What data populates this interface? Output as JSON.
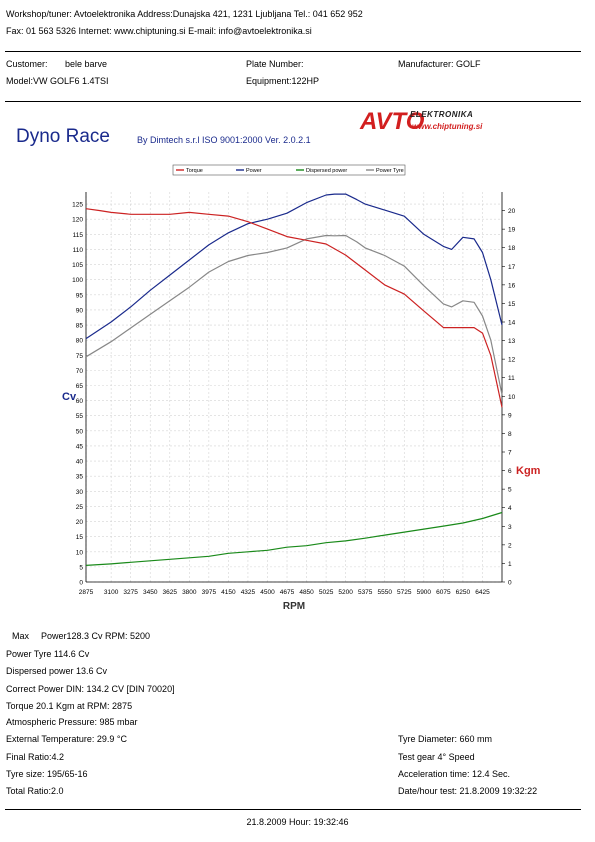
{
  "header": {
    "line1": "Workshop/tuner: Avtoelektronika   Address:Dunajska 421, 1231 Ljubljana   Tel.: 041 652 952",
    "line2": "Fax: 01 563 5326   Internet: www.chiptuning.si   E-mail: info@avtoelektronika.si"
  },
  "vehicle": {
    "customer_label": "Customer:",
    "customer_value": "bele barve",
    "plate": "Plate Number:",
    "manufacturer": "Manufacturer: GOLF",
    "model": "Model:VW GOLF6 1.4TSI",
    "equipment": "Equipment:122HP"
  },
  "report": {
    "title": "Dyno Race",
    "subtitle": "By Dimtech s.r.l  ISO 9001:2000  Ver. 2.0.2.1",
    "logo_main": "AVTO",
    "logo_side": "ELEKTRONIKA",
    "logo_url": "www.chiptuning.si"
  },
  "chart_data": {
    "type": "line",
    "xlabel": "RPM",
    "ylabel_left": "Cv",
    "ylabel_right": "Kgm",
    "xlim": [
      2875,
      6600
    ],
    "x_ticks": [
      "2875",
      "3100",
      "3275",
      "3450",
      "3625",
      "3800",
      "3975",
      "4150",
      "4325",
      "4500",
      "4675",
      "4850",
      "5025",
      "5200",
      "5375",
      "5550",
      "5725",
      "5900",
      "6075",
      "6250",
      "6425"
    ],
    "ylim_left": [
      0,
      129
    ],
    "y_ticks_left": [
      "0",
      "5",
      "10",
      "15",
      "20",
      "25",
      "30",
      "35",
      "40",
      "45",
      "50",
      "55",
      "60",
      "65",
      "70",
      "75",
      "80",
      "85",
      "90",
      "95",
      "100",
      "105",
      "110",
      "115",
      "120",
      "125"
    ],
    "ylim_right": [
      0,
      21
    ],
    "y_ticks_right": [
      "0",
      "1",
      "2",
      "3",
      "4",
      "5",
      "6",
      "7",
      "8",
      "9",
      "10",
      "11",
      "12",
      "13",
      "14",
      "15",
      "16",
      "17",
      "18",
      "19",
      "20"
    ],
    "legend": [
      "Torque",
      "Power",
      "Dispersed power",
      "Power Tyre"
    ],
    "colors": {
      "Torque": "#cc2222",
      "Power": "#1a2a8c",
      "Dispersed power": "#1a8a1a",
      "Power Tyre": "#888888"
    },
    "series": [
      {
        "name": "Power",
        "axis": "left",
        "x": [
          2875,
          3100,
          3275,
          3450,
          3625,
          3800,
          3975,
          4150,
          4325,
          4500,
          4675,
          4850,
          5025,
          5100,
          5200,
          5300,
          5375,
          5550,
          5725,
          5900,
          6075,
          6150,
          6250,
          6350,
          6425,
          6500,
          6600
        ],
        "values": [
          80.5,
          86,
          91,
          96.5,
          101.5,
          106.5,
          111.5,
          115.5,
          118.5,
          120,
          122,
          125.5,
          128,
          128.3,
          128.3,
          126.5,
          125,
          123,
          121,
          115,
          111,
          110,
          114,
          113.5,
          109,
          100,
          85
        ]
      },
      {
        "name": "Power Tyre",
        "axis": "left",
        "x": [
          2875,
          3100,
          3275,
          3450,
          3625,
          3800,
          3975,
          4150,
          4325,
          4500,
          4675,
          4850,
          5025,
          5100,
          5200,
          5300,
          5375,
          5550,
          5725,
          5900,
          6075,
          6150,
          6250,
          6350,
          6425,
          6500,
          6600
        ],
        "values": [
          74.5,
          79.5,
          84,
          88.5,
          93,
          97.5,
          102.5,
          106,
          108,
          109,
          110.5,
          113.5,
          114.6,
          114.5,
          114.6,
          112.5,
          110.5,
          108,
          104.5,
          98,
          92,
          91,
          93,
          92.5,
          88,
          80,
          62
        ]
      },
      {
        "name": "Torque",
        "axis": "right",
        "x": [
          2875,
          3000,
          3100,
          3275,
          3450,
          3625,
          3800,
          3975,
          4150,
          4325,
          4500,
          4675,
          4850,
          5025,
          5200,
          5375,
          5550,
          5725,
          5900,
          6075,
          6250,
          6350,
          6425,
          6500,
          6600
        ],
        "values": [
          20.1,
          20,
          19.9,
          19.8,
          19.8,
          19.8,
          19.9,
          19.8,
          19.7,
          19.4,
          19,
          18.6,
          18.4,
          18.2,
          17.6,
          16.8,
          16,
          15.5,
          14.6,
          13.7,
          13.7,
          13.7,
          13.4,
          12.2,
          9.4
        ]
      },
      {
        "name": "Dispersed power",
        "axis": "left",
        "x": [
          2875,
          3100,
          3275,
          3450,
          3625,
          3800,
          3975,
          4150,
          4325,
          4500,
          4675,
          4850,
          5025,
          5200,
          5375,
          5550,
          5725,
          5900,
          6075,
          6250,
          6425,
          6600
        ],
        "values": [
          5.5,
          6,
          6.5,
          7,
          7.5,
          8,
          8.5,
          9.5,
          10,
          10.5,
          11.5,
          12,
          13,
          13.6,
          14.5,
          15.5,
          16.5,
          17.5,
          18.5,
          19.5,
          21,
          23
        ]
      }
    ]
  },
  "results": {
    "max_label": "Max",
    "max_power": "Power128.3 Cv RPM: 5200",
    "power_tyre": "Power Tyre       114.6 Cv",
    "dispersed": "Dispersed power   13.6 Cv",
    "correct_power": "Correct Power DIN:  134.2 CV  [DIN 70020]",
    "torque": "Torque 20.1  Kgm at RPM: 2875",
    "pressure": "Atmospheric Pressure:  985 mbar",
    "ext_temp": "External Temperature:   29.9 °C",
    "final_ratio": "Final Ratio:4.2",
    "tyre_size": "Tyre size: 195/65-16",
    "total_ratio": "Total Ratio:2.0",
    "tyre_diameter": "Tyre Diameter: 660 mm",
    "test_gear": "Test gear 4° Speed",
    "acceleration": "Acceleration time: 12.4 Sec.",
    "datetime": "Date/hour test:   21.8.2009 19:32:22"
  },
  "footer": {
    "date": "21.8.2009  Hour:  19:32:46"
  }
}
